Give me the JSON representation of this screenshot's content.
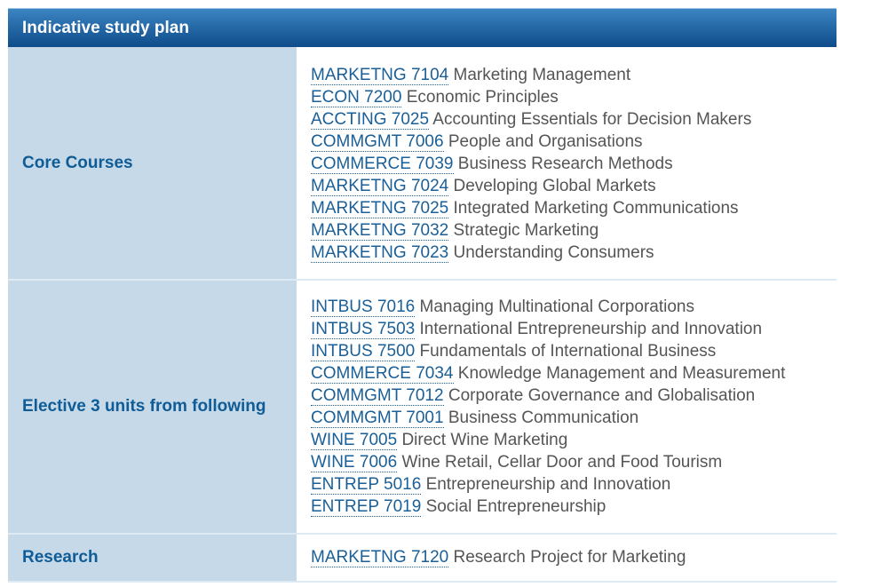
{
  "title": "Indicative study plan",
  "rows": [
    {
      "label": "Core Courses",
      "courses": [
        [
          "MARKETNG 7104",
          "Marketing Management"
        ],
        [
          "ECON 7200",
          "Economic Principles"
        ],
        [
          "ACCTING 7025",
          "Accounting Essentials for Decision Makers"
        ],
        [
          "COMMGMT 7006",
          "People and Organisations"
        ],
        [
          "COMMERCE 7039",
          "Business Research Methods"
        ],
        [
          "MARKETNG 7024",
          "Developing Global Markets"
        ],
        [
          "MARKETNG 7025",
          "Integrated Marketing Communications"
        ],
        [
          "MARKETNG 7032",
          "Strategic Marketing"
        ],
        [
          "MARKETNG 7023",
          "Understanding Consumers"
        ]
      ]
    },
    {
      "label": "Elective 3 units from following",
      "courses": [
        [
          "INTBUS 7016",
          "Managing Multinational Corporations"
        ],
        [
          "INTBUS 7503",
          "International Entrepreneurship and Innovation"
        ],
        [
          "INTBUS 7500",
          "Fundamentals of International Business"
        ],
        [
          "COMMERCE 7034",
          "Knowledge Management and Measurement"
        ],
        [
          "COMMGMT 7012",
          "Corporate Governance and Globalisation"
        ],
        [
          "COMMGMT 7001",
          "Business Communication"
        ],
        [
          "WINE 7005",
          "Direct Wine Marketing"
        ],
        [
          "WINE 7006",
          "Wine Retail, Cellar Door and Food Tourism"
        ],
        [
          "ENTREP 5016",
          "Entrepreneurship and Innovation"
        ],
        [
          "ENTREP 7019",
          "Social Entrepreneurship"
        ]
      ]
    },
    {
      "label": "Research",
      "courses": [
        [
          "MARKETNG 7120",
          "Research Project for Marketing"
        ]
      ]
    }
  ]
}
